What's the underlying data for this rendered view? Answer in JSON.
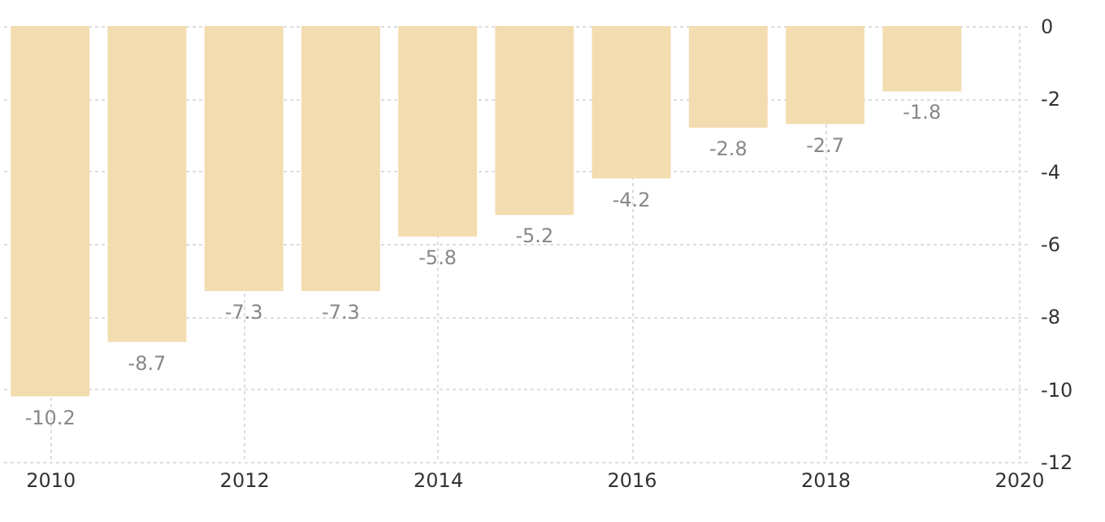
{
  "chart_data": {
    "type": "bar",
    "x": [
      2010,
      2011,
      2012,
      2013,
      2014,
      2015,
      2016,
      2017,
      2018,
      2019
    ],
    "values": [
      -10.2,
      -8.7,
      -7.3,
      -7.3,
      -5.8,
      -5.2,
      -4.2,
      -2.8,
      -2.7,
      -1.8
    ],
    "color": "#f3dcaf",
    "xlim": [
      2009.6,
      2020
    ],
    "xticks": [
      2010,
      2012,
      2014,
      2016,
      2018,
      2020
    ],
    "ylim": [
      -12,
      0
    ],
    "yticks": [
      -12,
      -10,
      -8,
      -6,
      -4,
      -2,
      0
    ],
    "grid": true,
    "data_labels": true
  }
}
